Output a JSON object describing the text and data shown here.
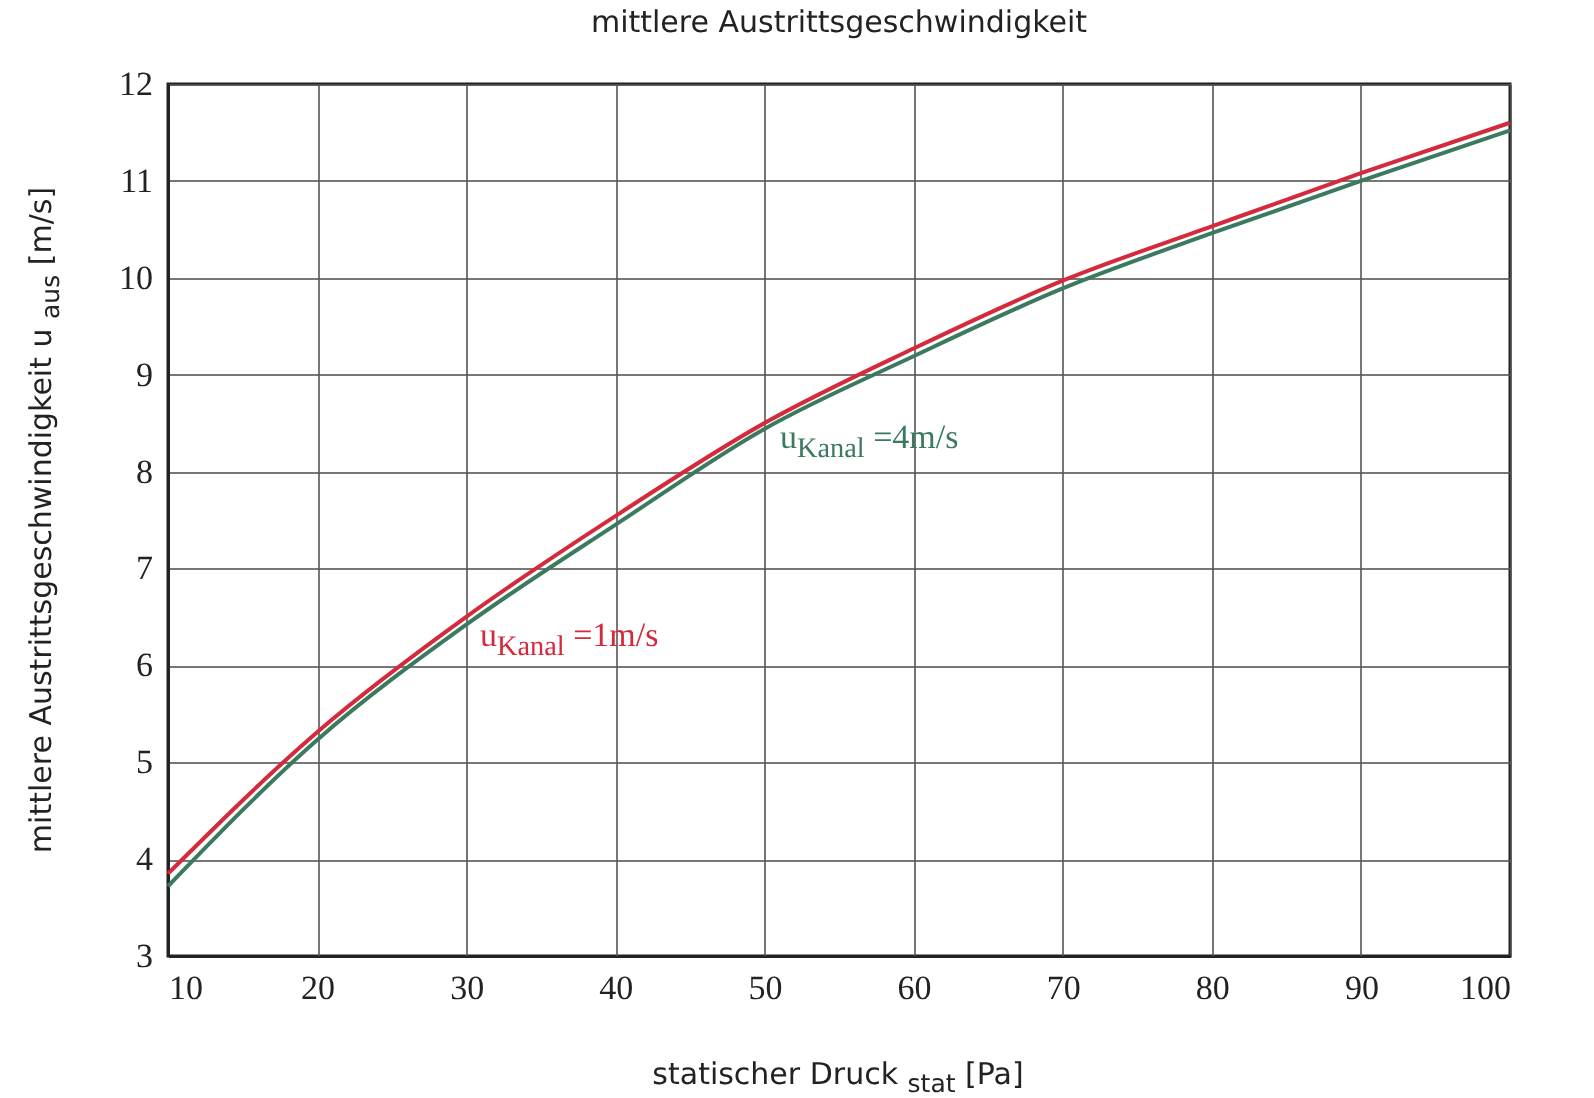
{
  "chart_data": {
    "type": "line",
    "title": "mittlere Austrittsgeschwindigkeit",
    "xlabel": "statischer Druck $_{stat}$ [Pa]",
    "ylabel": "mittlere Austrittsgeschwindigkeit u $_{aus}$ [m/s]",
    "x": [
      10,
      20,
      30,
      40,
      50,
      60,
      70,
      80,
      90,
      100
    ],
    "series": [
      {
        "name": "u$_{Kanal}$ =1m/s",
        "color": "#d42a3c",
        "values": [
          3.85,
          5.31,
          6.5,
          7.54,
          8.5,
          9.27,
          9.97,
          10.53,
          11.08,
          11.6
        ]
      },
      {
        "name": "u$_{Kanal}$ =4m/s",
        "color": "#3b7a5e",
        "values": [
          3.72,
          5.23,
          6.42,
          7.45,
          8.44,
          9.19,
          9.89,
          10.46,
          11.0,
          11.52
        ]
      }
    ],
    "xlim": [
      10,
      100
    ],
    "xticks": [
      10,
      20,
      30,
      40,
      50,
      60,
      70,
      80,
      90,
      100
    ],
    "ylim": [
      3,
      12
    ],
    "yticks": [
      3,
      4,
      5,
      6,
      7,
      8,
      9,
      10,
      11,
      12
    ],
    "grid": true,
    "marker": "none",
    "line_style": "solid"
  }
}
